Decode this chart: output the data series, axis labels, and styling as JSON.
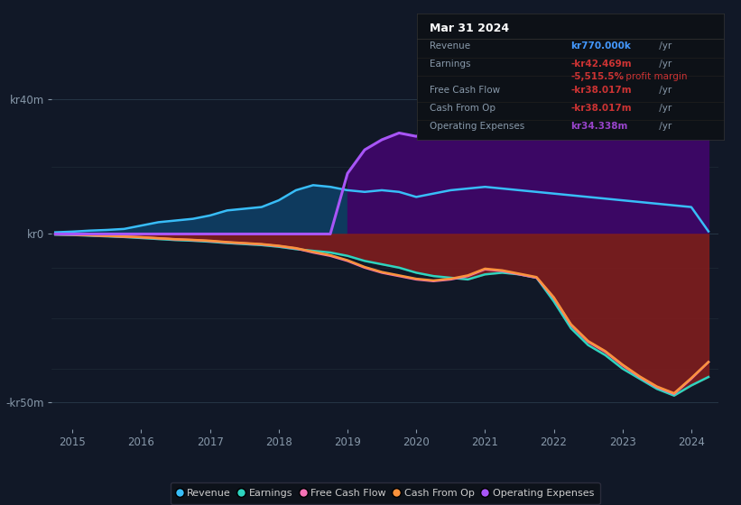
{
  "background_color": "#111827",
  "plot_bg_color": "#111827",
  "title": "Mar 31 2024",
  "yticks": [
    "kr40m",
    "kr0",
    "-kr50m"
  ],
  "ytick_vals": [
    40,
    0,
    -50
  ],
  "xtick_labels": [
    "2015",
    "2016",
    "2017",
    "2018",
    "2019",
    "2020",
    "2021",
    "2022",
    "2023",
    "2024"
  ],
  "xtick_positions": [
    2015,
    2016,
    2017,
    2018,
    2019,
    2020,
    2021,
    2022,
    2023,
    2024
  ],
  "legend": [
    {
      "label": "Revenue",
      "color": "#38bdf8"
    },
    {
      "label": "Earnings",
      "color": "#2dd4bf"
    },
    {
      "label": "Free Cash Flow",
      "color": "#f472b6"
    },
    {
      "label": "Cash From Op",
      "color": "#fb923c"
    },
    {
      "label": "Operating Expenses",
      "color": "#a855f7"
    }
  ],
  "colors": {
    "revenue": "#38bdf8",
    "earnings": "#2dd4bf",
    "free_cash_flow": "#f472b6",
    "cash_from_op": "#fb923c",
    "operating_expenses": "#a855f7",
    "revenue_fill": "#0e3a5e",
    "earnings_fill_neg": "#7f1d1d",
    "op_exp_fill": "#3b0764",
    "grid": "#1e2d3d"
  },
  "xlim": [
    2014.7,
    2024.4
  ],
  "ylim": [
    -58,
    50
  ],
  "x": [
    2014.75,
    2015.0,
    2015.25,
    2015.5,
    2015.75,
    2016.0,
    2016.25,
    2016.5,
    2016.75,
    2017.0,
    2017.25,
    2017.5,
    2017.75,
    2018.0,
    2018.25,
    2018.5,
    2018.75,
    2019.0,
    2019.25,
    2019.5,
    2019.75,
    2020.0,
    2020.25,
    2020.5,
    2020.75,
    2021.0,
    2021.25,
    2021.5,
    2021.75,
    2022.0,
    2022.25,
    2022.5,
    2022.75,
    2023.0,
    2023.25,
    2023.5,
    2023.75,
    2024.0,
    2024.25
  ],
  "revenue": [
    0.5,
    0.7,
    1.0,
    1.2,
    1.5,
    2.5,
    3.5,
    4.0,
    4.5,
    5.5,
    7.0,
    7.5,
    8.0,
    10.0,
    13.0,
    14.5,
    14.0,
    13.0,
    12.5,
    13.0,
    12.5,
    11.0,
    12.0,
    13.0,
    13.5,
    14.0,
    13.5,
    13.0,
    12.5,
    12.0,
    11.5,
    11.0,
    10.5,
    10.0,
    9.5,
    9.0,
    8.5,
    8.0,
    0.77
  ],
  "earnings": [
    -0.2,
    -0.3,
    -0.5,
    -0.7,
    -0.9,
    -1.2,
    -1.5,
    -1.8,
    -2.0,
    -2.3,
    -2.7,
    -3.0,
    -3.3,
    -3.8,
    -4.5,
    -5.0,
    -5.5,
    -6.5,
    -8.0,
    -9.0,
    -10.0,
    -11.5,
    -12.5,
    -13.0,
    -13.5,
    -12.0,
    -11.5,
    -12.0,
    -13.0,
    -20.0,
    -28.0,
    -33.0,
    -36.0,
    -40.0,
    -43.0,
    -46.0,
    -48.0,
    -45.0,
    -42.469
  ],
  "free_cash_flow": [
    -0.1,
    -0.2,
    -0.4,
    -0.6,
    -0.8,
    -1.0,
    -1.3,
    -1.6,
    -1.8,
    -2.1,
    -2.5,
    -2.8,
    -3.1,
    -3.6,
    -4.3,
    -5.5,
    -6.5,
    -8.0,
    -10.0,
    -11.5,
    -12.5,
    -13.5,
    -14.0,
    -13.5,
    -12.5,
    -10.5,
    -11.0,
    -12.0,
    -13.0,
    -19.0,
    -27.0,
    -32.0,
    -35.0,
    -39.0,
    -42.5,
    -45.5,
    -47.5,
    -43.0,
    -38.017
  ],
  "cash_from_op": [
    -0.1,
    -0.15,
    -0.35,
    -0.55,
    -0.75,
    -0.95,
    -1.25,
    -1.55,
    -1.75,
    -2.0,
    -2.4,
    -2.7,
    -3.0,
    -3.5,
    -4.2,
    -5.3,
    -6.3,
    -7.8,
    -9.8,
    -11.3,
    -12.3,
    -13.3,
    -13.8,
    -13.3,
    -12.3,
    -10.3,
    -10.8,
    -11.8,
    -12.8,
    -18.8,
    -26.8,
    -31.8,
    -34.8,
    -38.8,
    -42.3,
    -45.3,
    -47.3,
    -42.8,
    -38.017
  ],
  "operating_expenses": [
    0.0,
    0.0,
    0.0,
    0.0,
    0.0,
    0.0,
    0.0,
    0.0,
    0.0,
    0.0,
    0.0,
    0.0,
    0.0,
    0.0,
    0.0,
    0.0,
    0.0,
    18.0,
    25.0,
    28.0,
    30.0,
    29.0,
    31.0,
    32.5,
    34.0,
    35.0,
    36.5,
    36.0,
    35.5,
    35.0,
    34.5,
    34.0,
    33.5,
    33.5,
    34.5,
    35.0,
    34.5,
    34.0,
    34.338
  ]
}
